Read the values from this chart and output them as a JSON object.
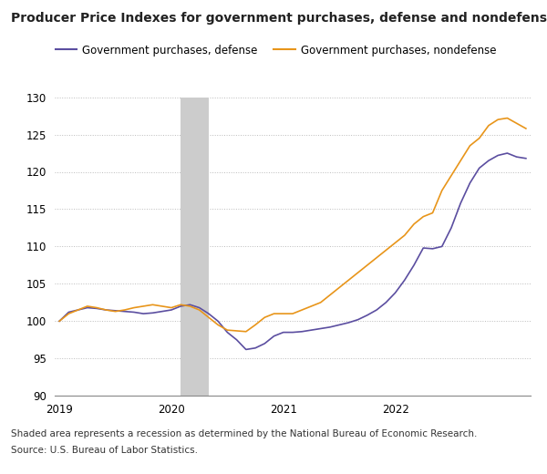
{
  "title": "Producer Price Indexes for government purchases, defense and nondefense",
  "legend_defense": "Government purchases, defense",
  "legend_nondefense": "Government purchases, nondefense",
  "footnote1": "Shaded area represents a recession as determined by the National Bureau of Economic Research.",
  "footnote2": "Source: U.S. Bureau of Labor Statistics.",
  "defense_color": "#5b4ea0",
  "nondefense_color": "#e8951a",
  "recession_color": "#cccccc",
  "ylim": [
    90,
    130
  ],
  "yticks": [
    90,
    95,
    100,
    105,
    110,
    115,
    120,
    125,
    130
  ],
  "defense": [
    100.0,
    101.2,
    101.5,
    101.8,
    101.7,
    101.5,
    101.4,
    101.3,
    101.2,
    101.0,
    101.1,
    101.3,
    101.5,
    102.0,
    102.2,
    101.8,
    101.0,
    100.0,
    98.5,
    97.5,
    96.2,
    96.4,
    97.0,
    98.0,
    98.5,
    98.5,
    98.6,
    98.8,
    99.0,
    99.2,
    99.5,
    99.8,
    100.2,
    100.8,
    101.5,
    102.5,
    103.8,
    105.5,
    107.5,
    109.8,
    109.7,
    110.0,
    112.5,
    115.8,
    118.5,
    120.5,
    121.5,
    122.2,
    122.5,
    122.0,
    121.8
  ],
  "nondefense": [
    100.0,
    101.0,
    101.5,
    102.0,
    101.8,
    101.5,
    101.3,
    101.5,
    101.8,
    102.0,
    102.2,
    102.0,
    101.8,
    102.2,
    102.0,
    101.5,
    100.5,
    99.5,
    98.8,
    98.7,
    98.6,
    99.5,
    100.5,
    101.0,
    101.0,
    101.0,
    101.5,
    102.0,
    102.5,
    103.5,
    104.5,
    105.5,
    106.5,
    107.5,
    108.5,
    109.5,
    110.5,
    111.5,
    113.0,
    114.0,
    114.5,
    117.5,
    119.5,
    121.5,
    123.5,
    124.5,
    126.2,
    127.0,
    127.2,
    126.5,
    125.8
  ]
}
